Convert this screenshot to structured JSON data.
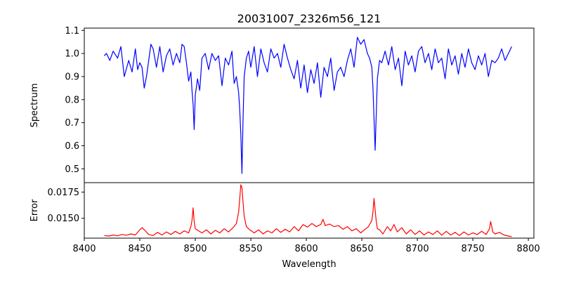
{
  "chart_data": {
    "title": "20031007_2326m56_121",
    "xlabel": "Wavelength",
    "xlim": [
      8400,
      8805
    ],
    "xticks": [
      8400,
      8450,
      8500,
      8550,
      8600,
      8650,
      8700,
      8750,
      8800
    ],
    "xtick_labels": [
      "8400",
      "8450",
      "8500",
      "8550",
      "8600",
      "8650",
      "8700",
      "8750",
      "8800"
    ],
    "grid": false,
    "panels": [
      {
        "type": "line",
        "ylabel": "Spectrum",
        "ylim": [
          0.44,
          1.11
        ],
        "yticks": [
          0.5,
          0.6,
          0.7,
          0.8,
          0.9,
          1.0,
          1.1
        ],
        "ytick_labels": [
          "0.5",
          "0.6",
          "0.7",
          "0.8",
          "0.9",
          "1.0",
          "1.1"
        ],
        "series": [
          {
            "color": "#0000ff",
            "x": [
              8418,
              8420,
              8423,
              8426,
              8430,
              8433,
              8436,
              8440,
              8443,
              8446,
              8448,
              8450,
              8452,
              8454,
              8456,
              8458,
              8460,
              8462,
              8465,
              8468,
              8471,
              8474,
              8477,
              8480,
              8483,
              8486,
              8488,
              8490,
              8492,
              8494,
              8496,
              8497,
              8498,
              8499,
              8500,
              8502,
              8504,
              8506,
              8509,
              8512,
              8515,
              8518,
              8521,
              8524,
              8527,
              8530,
              8533,
              8535,
              8537,
              8539,
              8540,
              8541,
              8542,
              8543,
              8544,
              8546,
              8548,
              8550,
              8553,
              8556,
              8559,
              8562,
              8565,
              8568,
              8571,
              8574,
              8577,
              8580,
              8583,
              8586,
              8589,
              8592,
              8595,
              8598,
              8601,
              8604,
              8607,
              8610,
              8613,
              8616,
              8619,
              8622,
              8625,
              8628,
              8631,
              8634,
              8637,
              8640,
              8643,
              8646,
              8649,
              8652,
              8655,
              8657,
              8659,
              8660,
              8661,
              8662,
              8663,
              8664,
              8666,
              8668,
              8671,
              8674,
              8677,
              8680,
              8683,
              8686,
              8689,
              8692,
              8695,
              8698,
              8701,
              8704,
              8707,
              8710,
              8713,
              8716,
              8719,
              8722,
              8725,
              8728,
              8731,
              8734,
              8737,
              8740,
              8743,
              8746,
              8749,
              8752,
              8755,
              8758,
              8761,
              8764,
              8767,
              8770,
              8773,
              8776,
              8779,
              8782,
              8785
            ],
            "y": [
              0.99,
              1.0,
              0.97,
              1.01,
              0.98,
              1.03,
              0.9,
              0.97,
              0.92,
              1.02,
              0.93,
              0.96,
              0.94,
              0.85,
              0.9,
              0.97,
              1.04,
              1.02,
              0.94,
              1.03,
              0.92,
              0.99,
              1.02,
              0.95,
              1.0,
              0.96,
              1.04,
              1.03,
              0.96,
              0.88,
              0.92,
              0.84,
              0.78,
              0.67,
              0.82,
              0.89,
              0.84,
              0.98,
              1.0,
              0.93,
              1.0,
              0.97,
              0.99,
              0.86,
              0.98,
              0.95,
              1.01,
              0.87,
              0.9,
              0.83,
              0.76,
              0.65,
              0.48,
              0.72,
              0.9,
              0.98,
              1.01,
              0.94,
              1.03,
              0.9,
              1.02,
              0.96,
              0.92,
              1.02,
              0.98,
              1.0,
              0.94,
              1.04,
              0.98,
              0.93,
              0.89,
              0.97,
              0.85,
              0.95,
              0.83,
              0.93,
              0.87,
              0.96,
              0.81,
              0.94,
              0.9,
              0.98,
              0.84,
              0.92,
              0.94,
              0.9,
              0.97,
              1.02,
              0.94,
              1.07,
              1.04,
              1.06,
              1.0,
              0.98,
              0.94,
              0.85,
              0.72,
              0.58,
              0.74,
              0.89,
              0.97,
              0.96,
              1.01,
              0.95,
              1.03,
              0.93,
              0.98,
              0.86,
              1.01,
              0.95,
              0.99,
              0.92,
              1.01,
              1.03,
              0.96,
              1.0,
              0.93,
              1.02,
              0.96,
              0.98,
              0.89,
              1.02,
              0.95,
              0.99,
              0.91,
              1.0,
              0.94,
              1.02,
              0.96,
              0.93,
              0.99,
              0.95,
              1.0,
              0.9,
              0.97,
              0.96,
              0.98,
              1.02,
              0.97,
              1.0,
              1.03
            ]
          }
        ]
      },
      {
        "type": "line",
        "ylabel": "Error",
        "ylim": [
          0.0131,
          0.0184
        ],
        "yticks": [
          0.015,
          0.0175
        ],
        "ytick_labels": [
          "0.0150",
          "0.0175"
        ],
        "series": [
          {
            "color": "#ff0000",
            "x": [
              8418,
              8422,
              8426,
              8430,
              8434,
              8438,
              8442,
              8446,
              8450,
              8452,
              8455,
              8458,
              8462,
              8466,
              8470,
              8474,
              8478,
              8482,
              8486,
              8490,
              8494,
              8496,
              8497,
              8498,
              8499,
              8500,
              8503,
              8506,
              8510,
              8514,
              8518,
              8522,
              8526,
              8530,
              8534,
              8537,
              8539,
              8540,
              8541,
              8542,
              8543,
              8544,
              8546,
              8549,
              8553,
              8557,
              8561,
              8565,
              8569,
              8573,
              8577,
              8581,
              8585,
              8589,
              8593,
              8597,
              8601,
              8605,
              8609,
              8613,
              8615,
              8617,
              8621,
              8625,
              8629,
              8633,
              8637,
              8641,
              8645,
              8649,
              8653,
              8656,
              8659,
              8660,
              8661,
              8662,
              8663,
              8664,
              8666,
              8669,
              8673,
              8676,
              8679,
              8682,
              8686,
              8690,
              8694,
              8698,
              8702,
              8706,
              8710,
              8714,
              8718,
              8722,
              8726,
              8730,
              8734,
              8738,
              8742,
              8746,
              8750,
              8754,
              8758,
              8762,
              8765,
              8766,
              8767,
              8768,
              8770,
              8774,
              8778,
              8782,
              8785
            ],
            "y": [
              0.01335,
              0.0133,
              0.0134,
              0.01332,
              0.01345,
              0.01338,
              0.0135,
              0.0134,
              0.0139,
              0.0141,
              0.0138,
              0.01345,
              0.01335,
              0.01365,
              0.0134,
              0.0137,
              0.01345,
              0.01375,
              0.0135,
              0.0138,
              0.0136,
              0.0142,
              0.0148,
              0.016,
              0.0147,
              0.014,
              0.0138,
              0.0136,
              0.0139,
              0.0135,
              0.01385,
              0.0136,
              0.014,
              0.0137,
              0.0141,
              0.0145,
              0.0156,
              0.0168,
              0.0182,
              0.0179,
              0.0165,
              0.0152,
              0.0142,
              0.0139,
              0.0136,
              0.0139,
              0.0135,
              0.0138,
              0.0136,
              0.014,
              0.01365,
              0.01395,
              0.0137,
              0.0142,
              0.0138,
              0.0144,
              0.01415,
              0.0145,
              0.0142,
              0.0144,
              0.0149,
              0.0143,
              0.01445,
              0.0142,
              0.0143,
              0.01395,
              0.0142,
              0.0138,
              0.014,
              0.0136,
              0.01395,
              0.0142,
              0.0148,
              0.0156,
              0.0169,
              0.0158,
              0.0147,
              0.014,
              0.0139,
              0.0135,
              0.0142,
              0.0138,
              0.0144,
              0.0137,
              0.0141,
              0.0135,
              0.0139,
              0.01345,
              0.0138,
              0.0134,
              0.0137,
              0.01345,
              0.0138,
              0.01338,
              0.01375,
              0.0134,
              0.01365,
              0.01335,
              0.0137,
              0.0134,
              0.0136,
              0.01345,
              0.01375,
              0.01345,
              0.014,
              0.0147,
              0.0142,
              0.0137,
              0.0135,
              0.01365,
              0.0134,
              0.0133,
              0.01325
            ]
          }
        ]
      }
    ]
  }
}
